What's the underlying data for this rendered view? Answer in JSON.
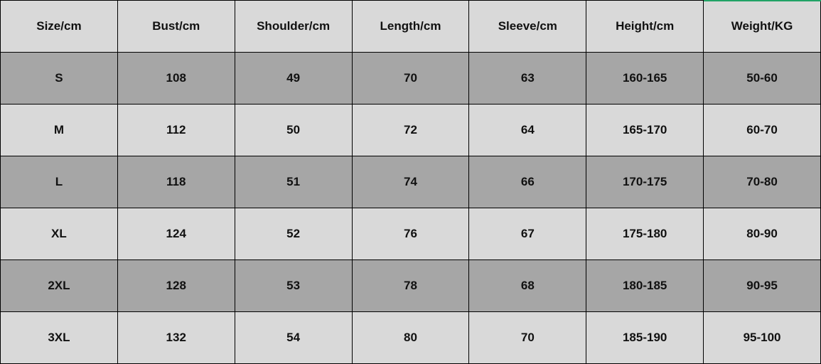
{
  "headers": [
    "Size/cm",
    "Bust/cm",
    "Shoulder/cm",
    "Length/cm",
    "Sleeve/cm",
    "Height/cm",
    "Weight/KG"
  ],
  "rows": [
    [
      "S",
      "108",
      "49",
      "70",
      "63",
      "160-165",
      "50-60"
    ],
    [
      "M",
      "112",
      "50",
      "72",
      "64",
      "165-170",
      "60-70"
    ],
    [
      "L",
      "118",
      "51",
      "74",
      "66",
      "170-175",
      "70-80"
    ],
    [
      "XL",
      "124",
      "52",
      "76",
      "67",
      "175-180",
      "80-90"
    ],
    [
      "2XL",
      "128",
      "53",
      "78",
      "68",
      "180-185",
      "90-95"
    ],
    [
      "3XL",
      "132",
      "54",
      "80",
      "70",
      "185-190",
      "95-100"
    ]
  ],
  "colors": {
    "light_row": "#d9d9d9",
    "dark_row": "#a6a6a6",
    "selection": "#21a366"
  }
}
